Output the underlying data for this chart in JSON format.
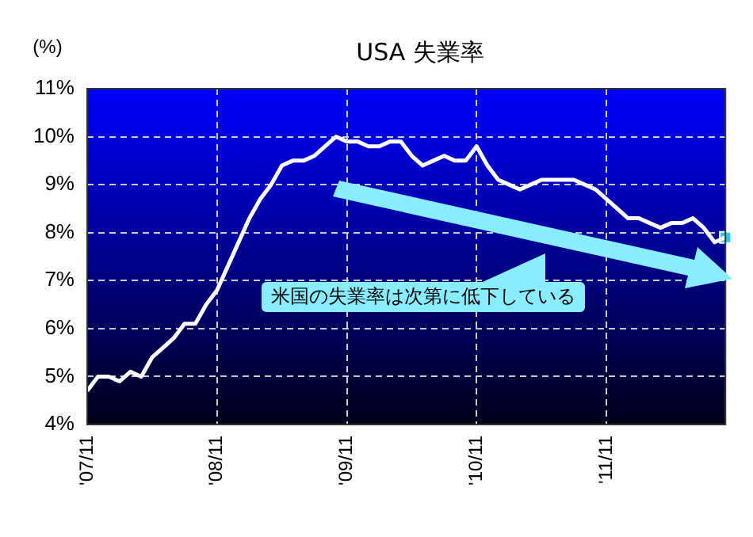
{
  "chart_data": {
    "type": "line",
    "title": "USA 失業率",
    "ylabel": "(%)",
    "categories": [
      "'07/11",
      null,
      null,
      null,
      null,
      null,
      null,
      null,
      null,
      null,
      null,
      null,
      "'08/11",
      null,
      null,
      null,
      null,
      null,
      null,
      null,
      null,
      null,
      null,
      null,
      "'09/11",
      null,
      null,
      null,
      null,
      null,
      null,
      null,
      null,
      null,
      null,
      null,
      "'10/11",
      null,
      null,
      null,
      null,
      null,
      null,
      null,
      null,
      null,
      null,
      null,
      "'11/11",
      null,
      null,
      null,
      null,
      null,
      null,
      null,
      null,
      null,
      null,
      null
    ],
    "series": [
      {
        "color": "#ffffff",
        "values": [
          4.7,
          5.0,
          5.0,
          4.9,
          5.1,
          5.0,
          5.4,
          5.6,
          5.8,
          6.1,
          6.1,
          6.5,
          6.8,
          7.3,
          7.8,
          8.3,
          8.7,
          9.0,
          9.4,
          9.5,
          9.5,
          9.6,
          9.8,
          10.0,
          9.9,
          9.9,
          9.8,
          9.8,
          9.9,
          9.9,
          9.6,
          9.4,
          9.5,
          9.6,
          9.5,
          9.5,
          9.8,
          9.4,
          9.1,
          9.0,
          8.9,
          9.0,
          9.1,
          9.1,
          9.1,
          9.1,
          9.0,
          8.9,
          8.7,
          8.5,
          8.3,
          8.3,
          8.2,
          8.1,
          8.2,
          8.2,
          8.3,
          8.1,
          7.8,
          7.9
        ]
      },
      {
        "type": "scatter",
        "marker": "square",
        "color": "#22ccee",
        "values": [
          null,
          null,
          null,
          null,
          null,
          null,
          null,
          null,
          null,
          null,
          null,
          null,
          null,
          null,
          null,
          null,
          null,
          null,
          null,
          null,
          null,
          null,
          null,
          null,
          null,
          null,
          null,
          null,
          null,
          null,
          null,
          null,
          null,
          null,
          null,
          null,
          null,
          null,
          null,
          null,
          null,
          null,
          null,
          null,
          null,
          null,
          null,
          null,
          null,
          null,
          null,
          null,
          null,
          null,
          null,
          null,
          null,
          null,
          null,
          7.9
        ]
      }
    ],
    "ylim": [
      4,
      11
    ],
    "yticks": [
      {
        "value": 4,
        "label": "4%"
      },
      {
        "value": 5,
        "label": "5%"
      },
      {
        "value": 6,
        "label": "6%"
      },
      {
        "value": 7,
        "label": "7%"
      },
      {
        "value": 8,
        "label": "8%"
      },
      {
        "value": 9,
        "label": "9%"
      },
      {
        "value": 10,
        "label": "10%"
      },
      {
        "value": 11,
        "label": "11%"
      }
    ],
    "grid": true,
    "legend": false,
    "annotations": [
      "米国の失業率は次第に低下している"
    ]
  }
}
